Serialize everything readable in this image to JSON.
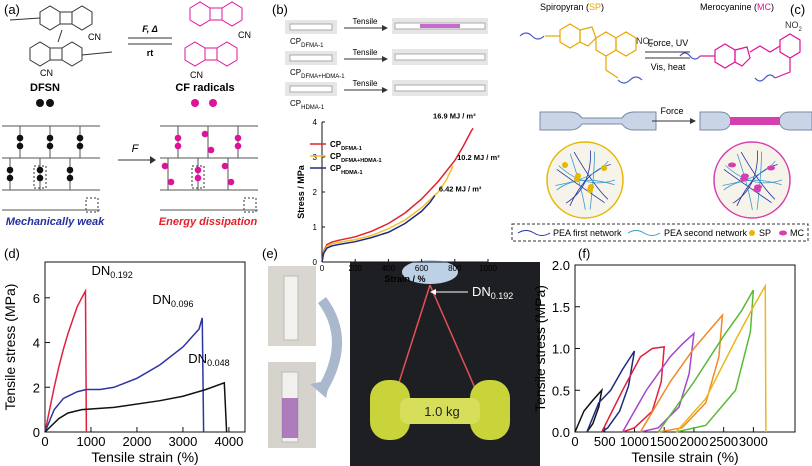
{
  "panels": {
    "a": {
      "label": "(a)",
      "forward": "F, Δ",
      "back": "rt",
      "cn": [
        "CN",
        "CN",
        "CN",
        "CN"
      ],
      "left_name": "DFSN",
      "right_name": "CF radicals",
      "force": "F",
      "caption_left": "Mechanically weak",
      "caption_right": "Energy dissipation"
    },
    "b": {
      "label": "(b)",
      "samples": [
        {
          "name": {
            "text": "CP",
            "sub": "DFMA-1"
          },
          "action": "Tensile"
        },
        {
          "name": {
            "text": "CP",
            "sub": "DFMA+HDMA-1"
          },
          "action": "Tensile"
        },
        {
          "name": {
            "text": "CP",
            "sub": "HDMA-1"
          },
          "action": "Tensile"
        }
      ]
    },
    "c": {
      "label": "(c)",
      "left_title": [
        "Spiropyran (",
        "SP",
        ")"
      ],
      "right_title": [
        "Merocyanine (",
        "MC",
        ")"
      ],
      "forward": "Force, UV",
      "back": "Vis, heat",
      "nitro": [
        {
          "text": "NO",
          "sub": "2"
        },
        {
          "text": "NO",
          "sub": "2"
        }
      ],
      "force": "Force",
      "legend": [
        "PEA first network",
        "PEA second network",
        "SP",
        "MC"
      ]
    },
    "d": {
      "label": "(d)"
    },
    "e": {
      "label": "(e)",
      "tag": {
        "text": "DN",
        "sub": "0.192"
      },
      "weight": "1.0 kg"
    },
    "f": {
      "label": "(f)"
    }
  },
  "chart_data": [
    {
      "type": "line",
      "xlabel": "Strain / %",
      "ylabel": "Stress / MPa",
      "xlim": [
        0,
        1000
      ],
      "ylim": [
        0,
        4
      ],
      "xticks": [
        0,
        200,
        400,
        600,
        800,
        1000
      ],
      "yticks": [
        0,
        1,
        2,
        3,
        4
      ],
      "legend": "upper left",
      "series": [
        {
          "name": {
            "text": "CP",
            "sub": "DFMA-1"
          },
          "color": "#e3202b",
          "end_label": "16.9 MJ / m³",
          "x": [
            0,
            10,
            30,
            60,
            100,
            200,
            300,
            400,
            500,
            600,
            700,
            800,
            850,
            900,
            910
          ],
          "values": [
            0,
            0.3,
            0.5,
            0.57,
            0.62,
            0.72,
            0.88,
            1.1,
            1.4,
            1.8,
            2.3,
            2.9,
            3.3,
            3.75,
            3.82
          ]
        },
        {
          "name": {
            "text": "CP",
            "sub": "DFMA+HDMA-1"
          },
          "color": "#f2c12e",
          "end_label": "10.2 MJ / m³",
          "x": [
            0,
            10,
            30,
            60,
            100,
            200,
            300,
            400,
            500,
            600,
            700,
            750,
            790
          ],
          "values": [
            0,
            0.28,
            0.45,
            0.52,
            0.56,
            0.64,
            0.76,
            0.95,
            1.2,
            1.55,
            2.0,
            2.35,
            2.75
          ]
        },
        {
          "name": {
            "text": "CP",
            "sub": "HDMA-1"
          },
          "color": "#1f2a80",
          "end_label": "6.42 MJ / m³",
          "x": [
            0,
            10,
            30,
            60,
            100,
            200,
            300,
            400,
            500,
            600,
            650,
            680
          ],
          "values": [
            0,
            0.25,
            0.4,
            0.46,
            0.5,
            0.58,
            0.7,
            0.85,
            1.1,
            1.45,
            1.7,
            1.9
          ]
        }
      ]
    },
    {
      "type": "line",
      "xlabel": "Tensile strain (%)",
      "ylabel": "Tensile stress (MPa)",
      "xlim": [
        0,
        4350
      ],
      "ylim": [
        0,
        7.6
      ],
      "xticks": [
        0,
        1000,
        2000,
        3000,
        4000
      ],
      "yticks": [
        0,
        2,
        4,
        6
      ],
      "series": [
        {
          "name": {
            "text": "DN",
            "sub": "0.192"
          },
          "color": "#e3203c",
          "x": [
            0,
            100,
            200,
            300,
            400,
            500,
            600,
            700,
            800,
            880,
            900
          ],
          "values": [
            0,
            1.0,
            2.0,
            2.9,
            3.7,
            4.4,
            5.0,
            5.6,
            6.0,
            6.3,
            0
          ]
        },
        {
          "name": {
            "text": "DN",
            "sub": "0.096"
          },
          "color": "#2b35a0",
          "x": [
            0,
            200,
            400,
            700,
            900,
            1200,
            1500,
            2000,
            2500,
            3000,
            3350,
            3420,
            3450
          ],
          "values": [
            0,
            1.0,
            1.5,
            1.8,
            1.9,
            1.9,
            2.0,
            2.4,
            3.0,
            3.8,
            4.6,
            5.1,
            0
          ]
        },
        {
          "name": {
            "text": "DN",
            "sub": "0.048"
          },
          "color": "#111111",
          "x": [
            0,
            300,
            500,
            800,
            1500,
            2500,
            3000,
            3500,
            3900,
            3950
          ],
          "values": [
            0,
            0.6,
            0.85,
            1.0,
            1.1,
            1.4,
            1.6,
            1.9,
            2.2,
            0
          ]
        }
      ]
    },
    {
      "type": "line",
      "xlabel": "Tensile strain (%)",
      "ylabel": "Tensile stress (MPa)",
      "xlim": [
        0,
        3700
      ],
      "ylim": [
        0,
        2
      ],
      "xticks": [
        0,
        500,
        1000,
        1500,
        2000,
        2500,
        3000
      ],
      "yticks": [
        {
          "value": 0,
          "label": "0.0"
        },
        0.5,
        {
          "value": 1,
          "label": "1.0"
        },
        1.5,
        {
          "value": 2,
          "label": "2.0"
        }
      ],
      "series": [
        {
          "color": "#111111",
          "x": [
            0,
            150,
            300,
            450,
            400,
            300,
            200
          ],
          "values": [
            0,
            0.25,
            0.38,
            0.5,
            0.3,
            0.1,
            0
          ]
        },
        {
          "color": "#1f2a80",
          "x": [
            200,
            400,
            600,
            800,
            1000,
            900,
            750,
            550,
            450
          ],
          "values": [
            0,
            0.35,
            0.5,
            0.75,
            0.97,
            0.55,
            0.25,
            0.05,
            0
          ]
        },
        {
          "color": "#e3203c",
          "x": [
            450,
            800,
            1100,
            1300,
            1500,
            1450,
            1300,
            1000,
            800
          ],
          "values": [
            0,
            0.5,
            0.9,
            1.0,
            1.02,
            0.6,
            0.25,
            0.05,
            0
          ]
        },
        {
          "color": "#a646c8",
          "x": [
            800,
            1200,
            1600,
            1800,
            2000,
            1920,
            1750,
            1400,
            1100
          ],
          "values": [
            0,
            0.5,
            0.9,
            1.05,
            1.18,
            0.7,
            0.3,
            0.05,
            0
          ]
        },
        {
          "color": "#f08a24",
          "x": [
            1100,
            1600,
            2000,
            2300,
            2480,
            2420,
            2200,
            1800,
            1400
          ],
          "values": [
            0,
            0.6,
            1.0,
            1.25,
            1.4,
            0.9,
            0.35,
            0.05,
            0
          ]
        },
        {
          "color": "#5cb83a",
          "x": [
            1400,
            2000,
            2500,
            2800,
            3000,
            2950,
            2700,
            2200,
            1700
          ],
          "values": [
            0,
            0.6,
            1.15,
            1.45,
            1.7,
            1.2,
            0.5,
            0.08,
            0
          ]
        },
        {
          "color": "#e8b81c",
          "x": [
            1700,
            2200,
            2700,
            3000,
            3200,
            3210
          ],
          "values": [
            0,
            0.4,
            1.1,
            1.5,
            1.75,
            0
          ]
        }
      ]
    }
  ]
}
